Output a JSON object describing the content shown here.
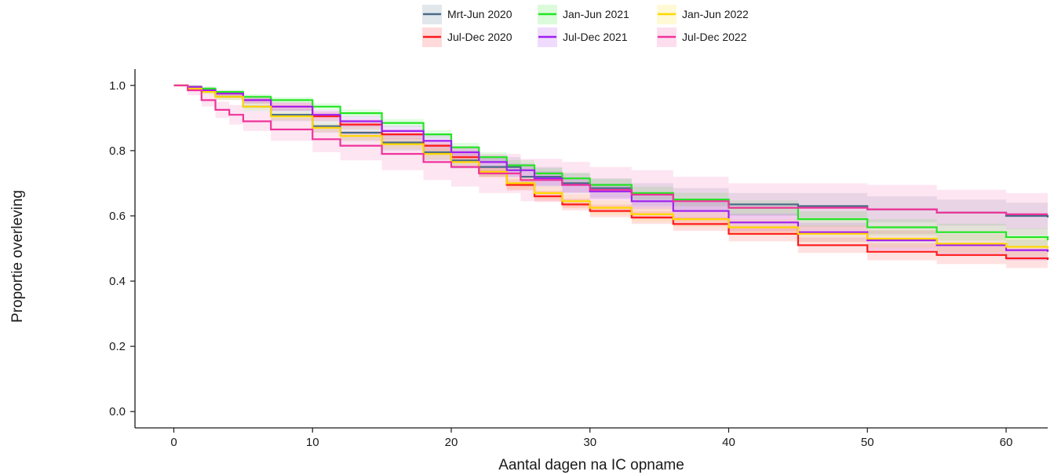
{
  "chart_data": {
    "type": "line",
    "step": true,
    "xlabel": "Aantal dagen na IC opname",
    "ylabel": "Proportie overleving",
    "xlim": [
      -2.8,
      63
    ],
    "ylim": [
      -0.05,
      1.05
    ],
    "x_ticks": [
      0,
      10,
      20,
      30,
      40,
      50,
      60
    ],
    "y_ticks": [
      0.0,
      0.2,
      0.4,
      0.6,
      0.8,
      1.0
    ],
    "y_tick_labels": [
      "0.0",
      "0.2",
      "0.4",
      "0.6",
      "0.8",
      "1.0"
    ],
    "grid": false,
    "legend_position": "top",
    "confidence_bands": true,
    "series": [
      {
        "name": "Mrt-Jun 2020",
        "color": "#4a6b8a",
        "x": [
          0,
          1,
          2,
          3,
          5,
          7,
          10,
          12,
          15,
          18,
          20,
          22,
          25,
          28,
          30,
          33,
          36,
          40,
          45,
          50,
          55,
          60,
          63
        ],
        "y": [
          1.0,
          0.995,
          0.985,
          0.965,
          0.935,
          0.91,
          0.875,
          0.855,
          0.825,
          0.795,
          0.77,
          0.75,
          0.72,
          0.7,
          0.685,
          0.665,
          0.65,
          0.635,
          0.63,
          0.62,
          0.61,
          0.6,
          0.595
        ],
        "ci_lower": [
          1.0,
          0.99,
          0.975,
          0.955,
          0.92,
          0.89,
          0.855,
          0.83,
          0.8,
          0.77,
          0.745,
          0.72,
          0.69,
          0.67,
          0.655,
          0.63,
          0.615,
          0.6,
          0.59,
          0.58,
          0.57,
          0.56,
          0.555
        ],
        "ci_upper": [
          1.0,
          1.0,
          0.995,
          0.975,
          0.95,
          0.93,
          0.895,
          0.88,
          0.85,
          0.82,
          0.795,
          0.78,
          0.75,
          0.73,
          0.715,
          0.7,
          0.685,
          0.67,
          0.67,
          0.66,
          0.65,
          0.64,
          0.635
        ]
      },
      {
        "name": "Jul-Dec 2020",
        "color": "#ff1a1a",
        "x": [
          0,
          1,
          2,
          3,
          5,
          7,
          10,
          12,
          15,
          18,
          20,
          22,
          24,
          26,
          28,
          30,
          33,
          36,
          40,
          45,
          50,
          55,
          60,
          63
        ],
        "y": [
          1.0,
          0.995,
          0.985,
          0.975,
          0.955,
          0.935,
          0.905,
          0.88,
          0.85,
          0.815,
          0.78,
          0.735,
          0.695,
          0.66,
          0.635,
          0.615,
          0.595,
          0.575,
          0.545,
          0.51,
          0.49,
          0.48,
          0.47,
          0.465
        ],
        "ci_lower": [
          1.0,
          0.99,
          0.98,
          0.968,
          0.945,
          0.922,
          0.89,
          0.865,
          0.835,
          0.8,
          0.765,
          0.72,
          0.678,
          0.643,
          0.617,
          0.596,
          0.575,
          0.554,
          0.522,
          0.486,
          0.464,
          0.452,
          0.44,
          0.434
        ],
        "ci_upper": [
          1.0,
          1.0,
          0.99,
          0.982,
          0.965,
          0.948,
          0.92,
          0.895,
          0.865,
          0.83,
          0.795,
          0.75,
          0.712,
          0.677,
          0.653,
          0.634,
          0.615,
          0.596,
          0.568,
          0.534,
          0.516,
          0.508,
          0.5,
          0.496
        ]
      },
      {
        "name": "Jan-Jun 2021",
        "color": "#22e622",
        "x": [
          0,
          1,
          2,
          3,
          5,
          7,
          10,
          12,
          15,
          18,
          20,
          22,
          24,
          26,
          28,
          30,
          33,
          36,
          40,
          45,
          50,
          55,
          60,
          63
        ],
        "y": [
          1.0,
          0.995,
          0.99,
          0.98,
          0.965,
          0.955,
          0.935,
          0.915,
          0.885,
          0.85,
          0.81,
          0.78,
          0.755,
          0.73,
          0.715,
          0.695,
          0.67,
          0.65,
          0.625,
          0.59,
          0.565,
          0.55,
          0.535,
          0.525
        ],
        "ci_lower": [
          1.0,
          0.99,
          0.984,
          0.973,
          0.957,
          0.946,
          0.925,
          0.904,
          0.873,
          0.837,
          0.796,
          0.765,
          0.739,
          0.713,
          0.697,
          0.676,
          0.65,
          0.629,
          0.603,
          0.566,
          0.54,
          0.524,
          0.508,
          0.497
        ],
        "ci_upper": [
          1.0,
          1.0,
          0.996,
          0.987,
          0.973,
          0.964,
          0.945,
          0.926,
          0.897,
          0.863,
          0.824,
          0.795,
          0.771,
          0.747,
          0.733,
          0.714,
          0.69,
          0.671,
          0.647,
          0.614,
          0.59,
          0.576,
          0.562,
          0.553
        ]
      },
      {
        "name": "Jul-Dec 2021",
        "color": "#a020f0",
        "x": [
          0,
          1,
          2,
          3,
          5,
          7,
          10,
          12,
          15,
          18,
          20,
          22,
          24,
          26,
          28,
          30,
          33,
          36,
          40,
          45,
          50,
          55,
          60,
          63
        ],
        "y": [
          1.0,
          0.995,
          0.985,
          0.975,
          0.955,
          0.935,
          0.91,
          0.89,
          0.86,
          0.83,
          0.795,
          0.765,
          0.74,
          0.715,
          0.695,
          0.675,
          0.645,
          0.615,
          0.58,
          0.55,
          0.525,
          0.51,
          0.495,
          0.49
        ],
        "ci_lower": [
          1.0,
          0.99,
          0.978,
          0.966,
          0.944,
          0.922,
          0.895,
          0.874,
          0.843,
          0.812,
          0.776,
          0.745,
          0.719,
          0.693,
          0.672,
          0.651,
          0.62,
          0.589,
          0.553,
          0.521,
          0.495,
          0.479,
          0.463,
          0.457
        ],
        "ci_upper": [
          1.0,
          1.0,
          0.992,
          0.984,
          0.966,
          0.948,
          0.925,
          0.906,
          0.877,
          0.848,
          0.814,
          0.785,
          0.761,
          0.737,
          0.718,
          0.699,
          0.67,
          0.641,
          0.607,
          0.579,
          0.555,
          0.541,
          0.527,
          0.523
        ]
      },
      {
        "name": "Jan-Jun 2022",
        "color": "#ffd700",
        "x": [
          0,
          1,
          2,
          3,
          5,
          7,
          10,
          12,
          15,
          18,
          20,
          22,
          24,
          26,
          28,
          30,
          33,
          36,
          40,
          45,
          50,
          55,
          60,
          63
        ],
        "y": [
          1.0,
          0.99,
          0.98,
          0.965,
          0.935,
          0.905,
          0.87,
          0.845,
          0.82,
          0.79,
          0.765,
          0.735,
          0.7,
          0.67,
          0.645,
          0.625,
          0.605,
          0.59,
          0.565,
          0.545,
          0.53,
          0.515,
          0.505,
          0.5
        ],
        "ci_lower": [
          1.0,
          0.984,
          0.972,
          0.956,
          0.924,
          0.893,
          0.857,
          0.831,
          0.805,
          0.774,
          0.748,
          0.717,
          0.681,
          0.65,
          0.624,
          0.603,
          0.582,
          0.566,
          0.54,
          0.519,
          0.503,
          0.487,
          0.476,
          0.47
        ],
        "ci_upper": [
          1.0,
          0.996,
          0.988,
          0.974,
          0.946,
          0.917,
          0.883,
          0.859,
          0.835,
          0.806,
          0.782,
          0.753,
          0.719,
          0.69,
          0.666,
          0.647,
          0.628,
          0.614,
          0.59,
          0.571,
          0.557,
          0.543,
          0.534,
          0.53
        ]
      },
      {
        "name": "Jul-Dec 2022",
        "color": "#f0339b",
        "x": [
          0,
          1,
          2,
          3,
          4,
          5,
          7,
          10,
          12,
          15,
          18,
          20,
          22,
          25,
          28,
          30,
          33,
          36,
          40,
          45,
          50,
          55,
          60,
          63
        ],
        "y": [
          1.0,
          0.985,
          0.955,
          0.925,
          0.91,
          0.89,
          0.865,
          0.835,
          0.815,
          0.79,
          0.765,
          0.75,
          0.73,
          0.71,
          0.695,
          0.68,
          0.665,
          0.645,
          0.625,
          0.625,
          0.62,
          0.61,
          0.605,
          0.605
        ],
        "ci_lower": [
          1.0,
          0.97,
          0.935,
          0.9,
          0.88,
          0.86,
          0.83,
          0.795,
          0.77,
          0.74,
          0.71,
          0.69,
          0.67,
          0.645,
          0.625,
          0.61,
          0.59,
          0.57,
          0.55,
          0.55,
          0.545,
          0.54,
          0.54,
          0.54
        ],
        "ci_upper": [
          1.0,
          1.0,
          0.975,
          0.95,
          0.94,
          0.92,
          0.9,
          0.875,
          0.86,
          0.84,
          0.82,
          0.81,
          0.79,
          0.775,
          0.765,
          0.75,
          0.74,
          0.72,
          0.7,
          0.7,
          0.695,
          0.68,
          0.67,
          0.67
        ]
      }
    ]
  }
}
